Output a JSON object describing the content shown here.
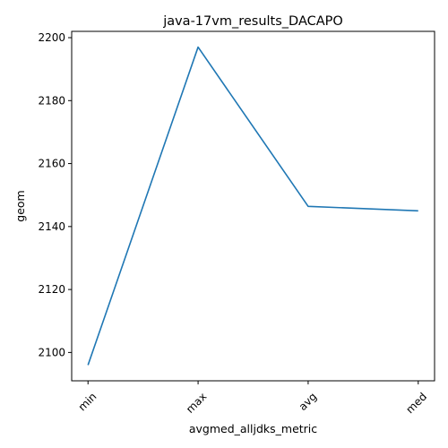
{
  "chart_data": {
    "type": "line",
    "title": "java-17vm_results_DACAPO",
    "xlabel": "avgmed_alljdks_metric",
    "ylabel": "geom",
    "categories": [
      "min",
      "max",
      "avg",
      "med"
    ],
    "series": [
      {
        "values": [
          2096,
          2197,
          2146.4,
          2145
        ]
      }
    ],
    "ylim": [
      2091,
      2202
    ],
    "yticks": [
      2100,
      2120,
      2140,
      2160,
      2180,
      2200
    ],
    "ytick_labels": [
      "2100",
      "2120",
      "2140",
      "2160",
      "2180",
      "2200"
    ],
    "xtick_rotation": 45,
    "grid": false,
    "line_color": "#1f77b4"
  }
}
